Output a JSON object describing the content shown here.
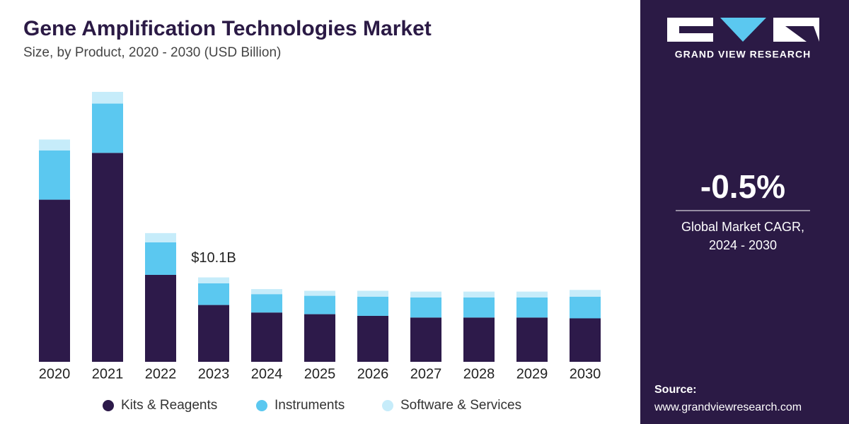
{
  "chart_data": {
    "type": "stacked_bar",
    "title": "Gene Amplification Technologies Market",
    "subtitle": "Size, by Product, 2020 - 2030 (USD Billion)",
    "categories": [
      "2020",
      "2021",
      "2022",
      "2023",
      "2024",
      "2025",
      "2026",
      "2027",
      "2028",
      "2029",
      "2030"
    ],
    "series": [
      {
        "name": "Kits & Reagents",
        "color": "#2d1a4a",
        "values": [
          19.4,
          25.0,
          10.4,
          6.8,
          5.9,
          5.7,
          5.5,
          5.3,
          5.3,
          5.3,
          5.2
        ]
      },
      {
        "name": "Instruments",
        "color": "#5bc8f0",
        "values": [
          5.9,
          5.9,
          3.9,
          2.6,
          2.2,
          2.2,
          2.3,
          2.4,
          2.4,
          2.4,
          2.6
        ]
      },
      {
        "name": "Software & Services",
        "color": "#c6ecfa",
        "values": [
          1.3,
          1.4,
          1.1,
          0.7,
          0.6,
          0.6,
          0.7,
          0.7,
          0.7,
          0.7,
          0.8
        ]
      }
    ],
    "annotation": {
      "category": "2023",
      "value": 10.1,
      "label": "$10.1B"
    },
    "legend": "bottom"
  },
  "side_panel": {
    "brand": "GRAND VIEW RESEARCH",
    "cagr": "-0.5%",
    "cagr_caption_1": "Global Market CAGR,",
    "cagr_caption_2": "2024 - 2030",
    "source_title": "Source:",
    "source_url": "www.grandviewresearch.com"
  }
}
